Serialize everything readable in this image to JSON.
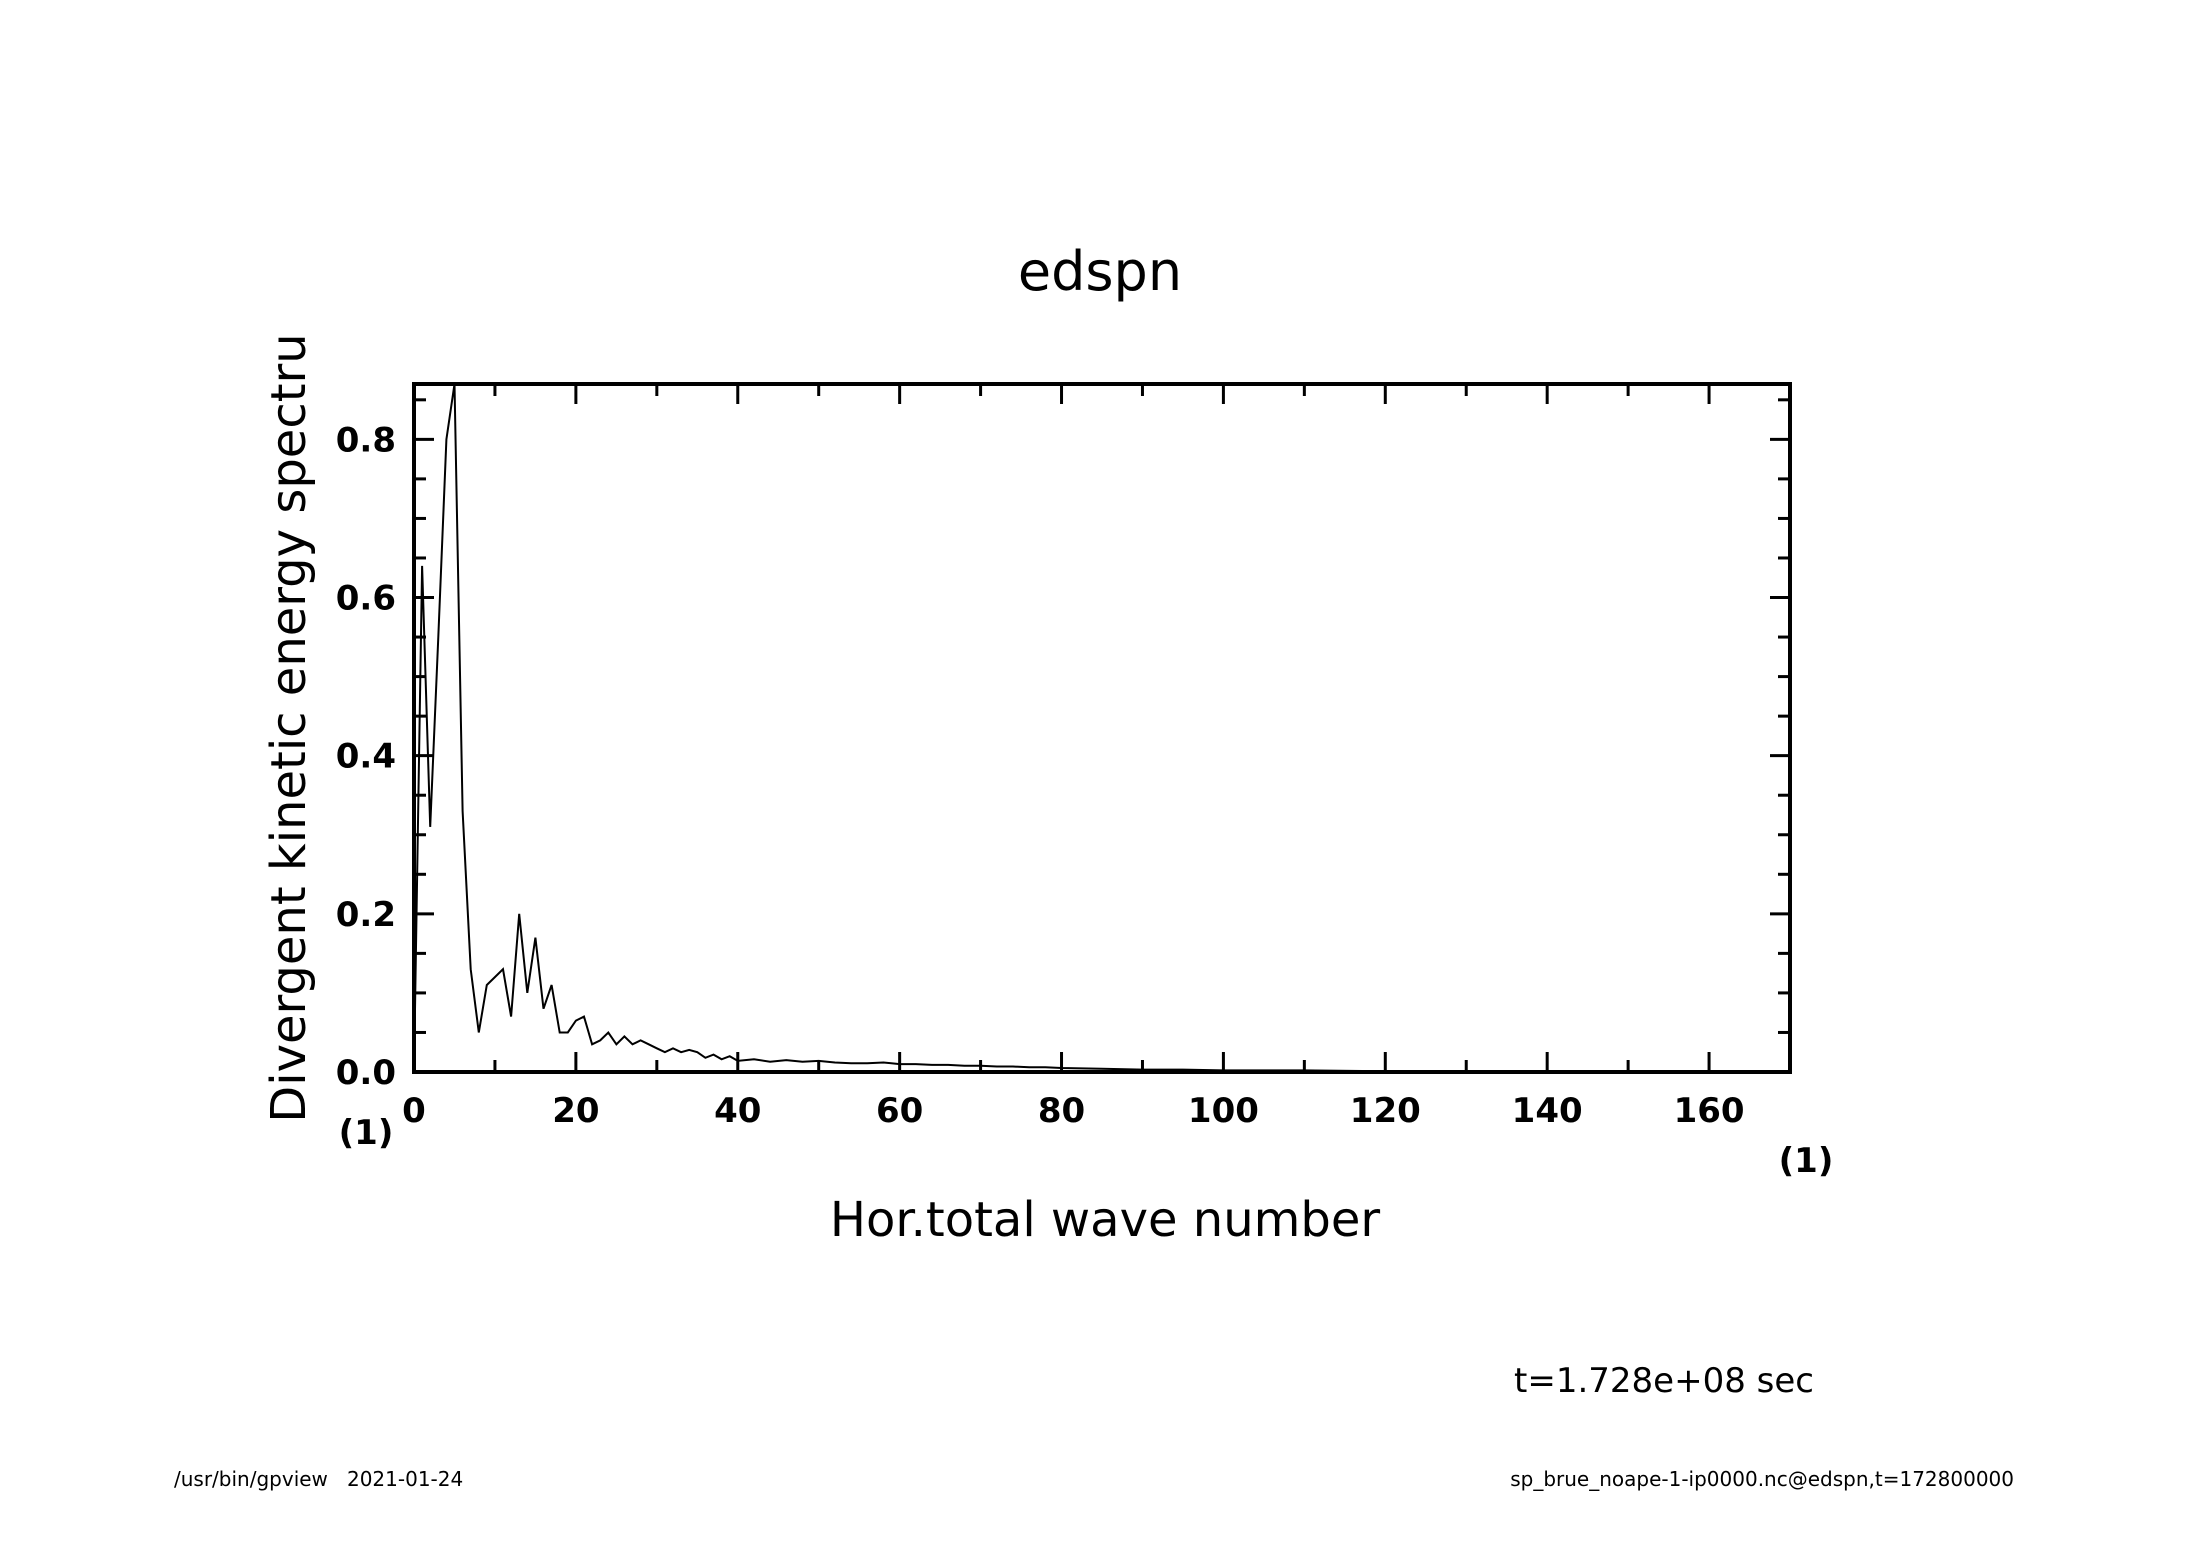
{
  "chart_data": {
    "type": "line",
    "title": "edspn",
    "xlabel": "Hor.total wave number",
    "ylabel": "Divergent kinetic energy spectru",
    "x_unit": "(1)",
    "y_unit": "(1)",
    "xlim": [
      0,
      170
    ],
    "ylim": [
      0,
      0.87
    ],
    "x_ticks": [
      0,
      20,
      40,
      60,
      80,
      100,
      120,
      140,
      160
    ],
    "x_tick_labels": [
      "0",
      "20",
      "40",
      "60",
      "80",
      "100",
      "120",
      "140",
      "160"
    ],
    "y_ticks": [
      0,
      0.2,
      0.4,
      0.6,
      0.8
    ],
    "y_tick_labels": [
      "0.0",
      "0.2",
      "0.4",
      "0.6",
      "0.8"
    ],
    "grid": false,
    "series": [
      {
        "x": [
          0,
          1,
          2,
          3,
          4,
          5,
          6,
          7,
          8,
          9,
          10,
          11,
          12,
          13,
          14,
          15,
          16,
          17,
          18,
          19,
          20,
          21,
          22,
          23,
          24,
          25,
          26,
          27,
          28,
          29,
          30,
          31,
          32,
          33,
          34,
          35,
          36,
          37,
          38,
          39,
          40,
          42,
          44,
          46,
          48,
          50,
          52,
          54,
          56,
          58,
          60,
          62,
          64,
          66,
          68,
          70,
          72,
          74,
          76,
          78,
          80,
          85,
          90,
          95,
          100,
          110,
          120,
          130,
          140,
          150,
          160,
          170
        ],
        "y": [
          0.0,
          0.64,
          0.31,
          0.55,
          0.8,
          0.87,
          0.33,
          0.13,
          0.05,
          0.11,
          0.12,
          0.13,
          0.07,
          0.2,
          0.1,
          0.17,
          0.08,
          0.11,
          0.05,
          0.05,
          0.065,
          0.07,
          0.035,
          0.04,
          0.05,
          0.035,
          0.045,
          0.035,
          0.04,
          0.035,
          0.03,
          0.025,
          0.03,
          0.025,
          0.028,
          0.025,
          0.018,
          0.022,
          0.016,
          0.02,
          0.014,
          0.016,
          0.013,
          0.015,
          0.013,
          0.014,
          0.012,
          0.011,
          0.011,
          0.012,
          0.01,
          0.01,
          0.009,
          0.009,
          0.008,
          0.008,
          0.007,
          0.007,
          0.006,
          0.006,
          0.005,
          0.004,
          0.003,
          0.003,
          0.002,
          0.002,
          0.001,
          0.001,
          0.001,
          0.0005,
          0.0005,
          0.0003
        ]
      }
    ]
  },
  "annotations": {
    "time": "t=1.728e+08 sec",
    "footer_left": "/usr/bin/gpview   2021-01-24",
    "footer_right": "sp_brue_noape-1-ip0000.nc@edspn,t=172800000"
  }
}
